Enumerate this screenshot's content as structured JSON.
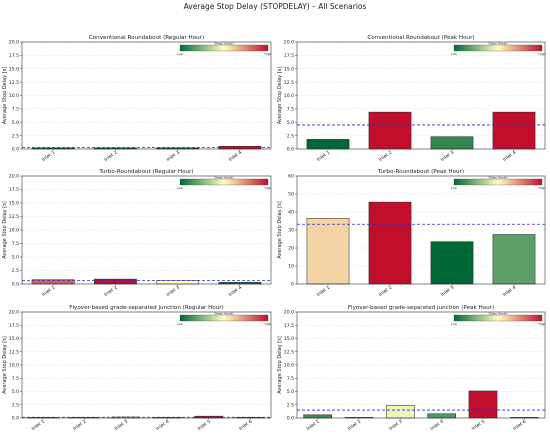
{
  "figure_title": "Average Stop Delay (STOPDELAY) – All Scenarios",
  "colorbar": {
    "label": "Delay (level)",
    "low": "Low",
    "high": "High"
  },
  "colors": {
    "low": "#006837",
    "mid": "#ffffbf",
    "high": "#c10e2b",
    "mean_line": "#2b2bd1"
  },
  "chart_data": [
    {
      "type": "bar",
      "title": "Conventional Roundabout (Regular Hour)",
      "ylabel": "Average Stop Delay [s]",
      "categories": [
        "Inlet 1",
        "Inlet 2",
        "Inlet 3",
        "Inlet 4"
      ],
      "values": [
        0.2,
        0.2,
        0.2,
        0.5
      ],
      "ylim": [
        0,
        20
      ],
      "yticks": [
        "0.0",
        "2.5",
        "5.0",
        "7.5",
        "10.0",
        "12.5",
        "15.0",
        "17.5",
        "20.0"
      ],
      "mean": 0.28,
      "grid": true
    },
    {
      "type": "bar",
      "title": "Conventional Roundabout (Peak Hour)",
      "ylabel": "Average Stop Delay [s]",
      "categories": [
        "Inlet 1",
        "Inlet 2",
        "Inlet 3",
        "Inlet 4"
      ],
      "values": [
        1.8,
        6.9,
        2.3,
        6.9
      ],
      "ylim": [
        0,
        20
      ],
      "yticks": [
        "0.0",
        "2.5",
        "5.0",
        "7.5",
        "10.0",
        "12.5",
        "15.0",
        "17.5",
        "20.0"
      ],
      "mean": 4.5,
      "grid": true
    },
    {
      "type": "bar",
      "title": "Turbo-Roundabout (Regular Hour)",
      "ylabel": "Average Stop Delay [s]",
      "categories": [
        "Inlet 1",
        "Inlet 2",
        "Inlet 3",
        "Inlet 4"
      ],
      "values": [
        0.8,
        0.9,
        0.6,
        0.3
      ],
      "ylim": [
        0,
        20
      ],
      "yticks": [
        "0.0",
        "2.5",
        "5.0",
        "7.5",
        "10.0",
        "12.5",
        "15.0",
        "17.5",
        "20.0"
      ],
      "mean": 0.65,
      "grid": true
    },
    {
      "type": "bar",
      "title": "Turbo-Roundabout (Peak Hour)",
      "ylabel": "Average Stop Delay [s]",
      "categories": [
        "Inlet 1",
        "Inlet 2",
        "Inlet 3",
        "Inlet 4"
      ],
      "values": [
        36.5,
        45.5,
        23.5,
        27.5
      ],
      "ylim": [
        0,
        60
      ],
      "yticks": [
        "0",
        "10",
        "20",
        "30",
        "40",
        "50",
        "60"
      ],
      "mean": 33.2,
      "grid": true
    },
    {
      "type": "bar",
      "title": "Flyover-based grade-separated junction (Regular Hour)",
      "ylabel": "Average Stop Delay [s]",
      "categories": [
        "Inlet 1",
        "Inlet 2",
        "Inlet 3",
        "Inlet 4",
        "Inlet 5",
        "Inlet 6"
      ],
      "values": [
        0.1,
        0.05,
        0.2,
        0.1,
        0.35,
        0.05
      ],
      "ylim": [
        0,
        20
      ],
      "yticks": [
        "0.0",
        "2.5",
        "5.0",
        "7.5",
        "10.0",
        "12.5",
        "15.0",
        "17.5",
        "20.0"
      ],
      "mean": 0.14,
      "grid": true
    },
    {
      "type": "bar",
      "title": "Flyover-based grade-separated junction (Peak Hour)",
      "ylabel": "Average Stop Delay [s]",
      "categories": [
        "Inlet 1",
        "Inlet 2",
        "Inlet 3",
        "Inlet 4",
        "Inlet 5",
        "Inlet 6"
      ],
      "values": [
        0.6,
        0.0,
        2.4,
        0.8,
        5.1,
        0.0
      ],
      "ylim": [
        0,
        20
      ],
      "yticks": [
        "0.0",
        "2.5",
        "5.0",
        "7.5",
        "10.0",
        "12.5",
        "15.0",
        "17.5",
        "20.0"
      ],
      "mean": 1.5,
      "grid": true
    }
  ]
}
